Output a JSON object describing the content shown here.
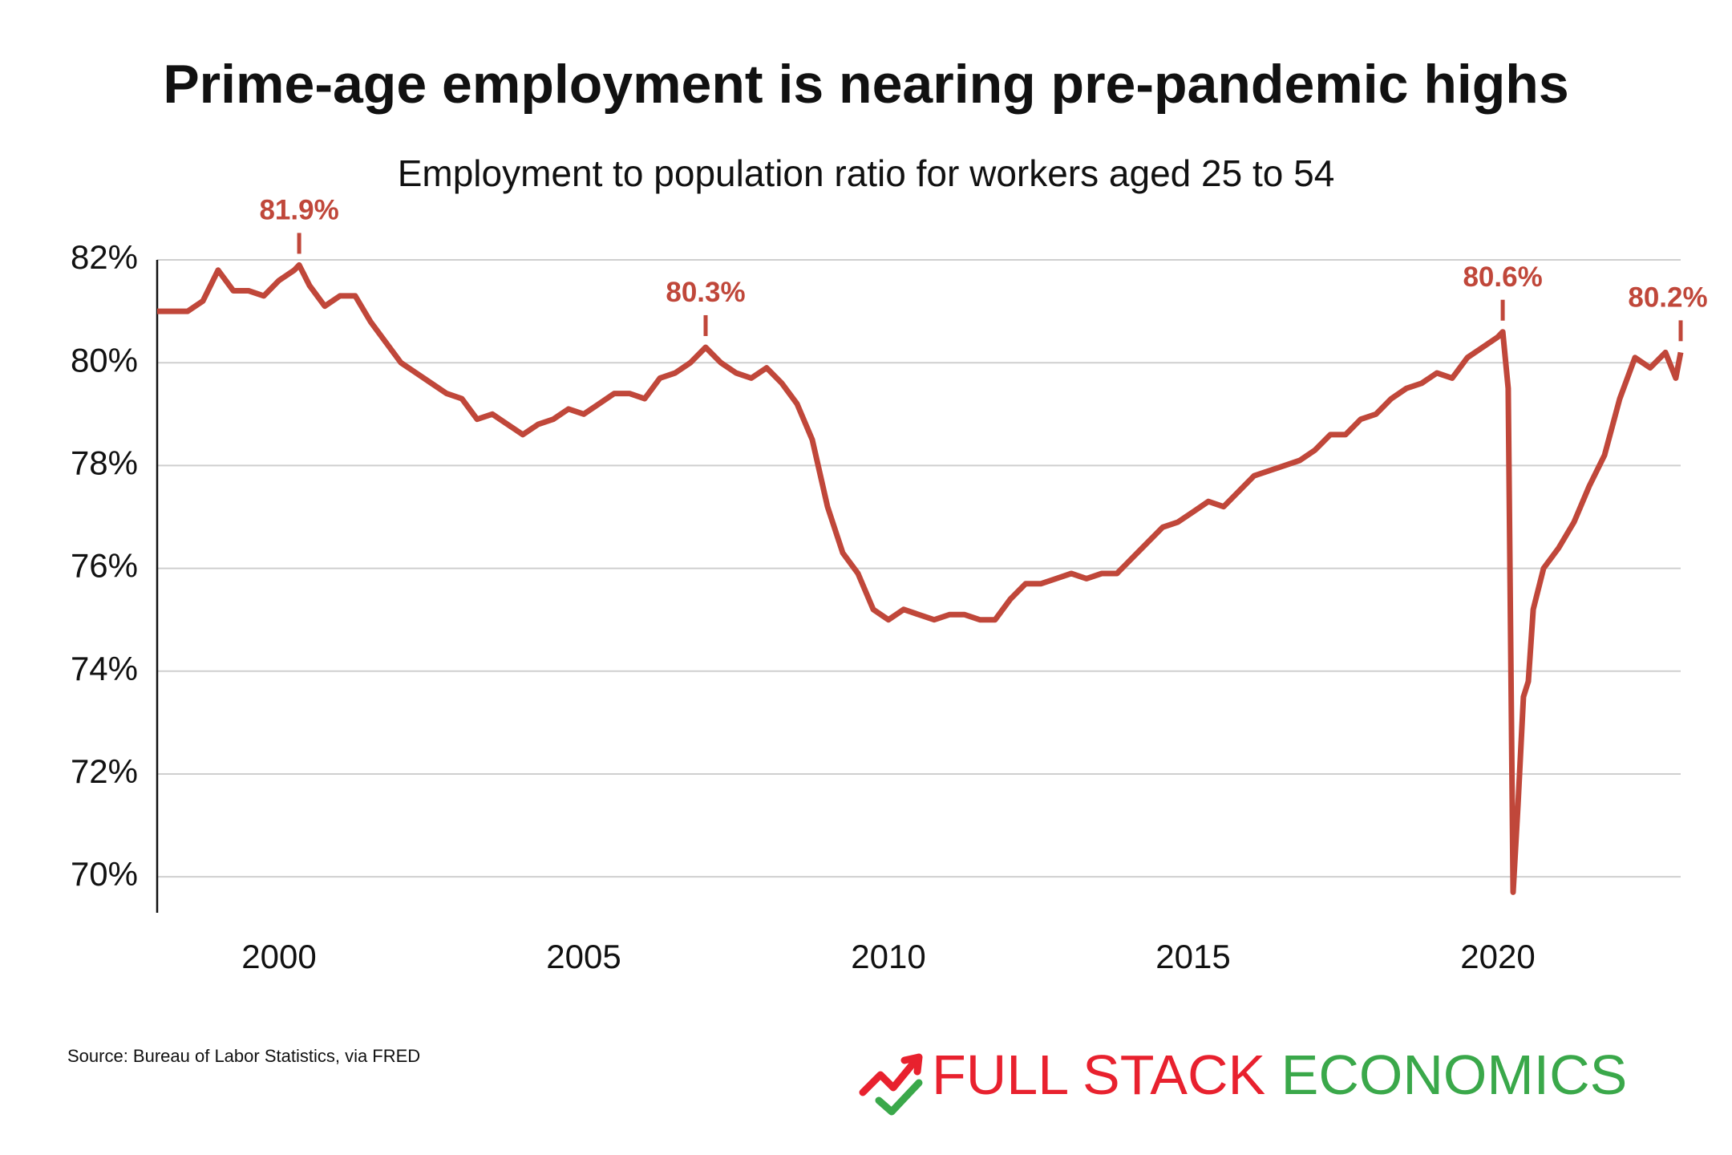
{
  "chart_data": {
    "type": "line",
    "title": "Prime-age employment is nearing pre-pandemic highs",
    "subtitle": "Employment to population ratio for workers aged 25 to 54",
    "source": "Source: Bureau of Labor Statistics, via FRED",
    "brand": [
      "FULL STACK",
      "ECONOMICS"
    ],
    "brand_colors": [
      "#e8212e",
      "#3aa84a"
    ],
    "color": "#c0473a",
    "grid": true,
    "xlim": [
      1998,
      2023
    ],
    "xticks": [
      2000,
      2005,
      2010,
      2015,
      2020
    ],
    "ylim": [
      69.3,
      82
    ],
    "yticks": [
      {
        "value": 70,
        "label": "70%"
      },
      {
        "value": 72,
        "label": "72%"
      },
      {
        "value": 74,
        "label": "74%"
      },
      {
        "value": 76,
        "label": "76%"
      },
      {
        "value": 78,
        "label": "78%"
      },
      {
        "value": 80,
        "label": "80%"
      },
      {
        "value": 82,
        "label": "82%"
      }
    ],
    "annotations": [
      {
        "x": 2000.33,
        "value": 81.9,
        "label": "81.9%"
      },
      {
        "x": 2007.0,
        "value": 80.3,
        "label": "80.3%"
      },
      {
        "x": 2020.08,
        "value": 80.6,
        "label": "80.6%"
      },
      {
        "x": 2023.0,
        "value": 80.2,
        "label": "80.2%"
      }
    ],
    "x": [
      1998.0,
      1998.25,
      1998.5,
      1998.75,
      1999.0,
      1999.25,
      1999.5,
      1999.75,
      2000.0,
      2000.25,
      2000.33,
      2000.5,
      2000.75,
      2001.0,
      2001.25,
      2001.5,
      2001.75,
      2002.0,
      2002.25,
      2002.5,
      2002.75,
      2003.0,
      2003.25,
      2003.5,
      2003.75,
      2004.0,
      2004.25,
      2004.5,
      2004.75,
      2005.0,
      2005.25,
      2005.5,
      2005.75,
      2006.0,
      2006.25,
      2006.5,
      2006.75,
      2007.0,
      2007.25,
      2007.5,
      2007.75,
      2008.0,
      2008.25,
      2008.5,
      2008.75,
      2009.0,
      2009.25,
      2009.5,
      2009.75,
      2010.0,
      2010.25,
      2010.5,
      2010.75,
      2011.0,
      2011.25,
      2011.5,
      2011.75,
      2012.0,
      2012.25,
      2012.5,
      2012.75,
      2013.0,
      2013.25,
      2013.5,
      2013.75,
      2014.0,
      2014.25,
      2014.5,
      2014.75,
      2015.0,
      2015.25,
      2015.5,
      2015.75,
      2016.0,
      2016.25,
      2016.5,
      2016.75,
      2017.0,
      2017.25,
      2017.5,
      2017.75,
      2018.0,
      2018.25,
      2018.5,
      2018.75,
      2019.0,
      2019.25,
      2019.5,
      2019.75,
      2020.0,
      2020.08,
      2020.17,
      2020.25,
      2020.33,
      2020.42,
      2020.5,
      2020.58,
      2020.75,
      2021.0,
      2021.25,
      2021.5,
      2021.75,
      2022.0,
      2022.25,
      2022.5,
      2022.75,
      2022.92,
      2023.0
    ],
    "values": [
      81.0,
      81.0,
      81.0,
      81.2,
      81.8,
      81.4,
      81.4,
      81.3,
      81.6,
      81.8,
      81.9,
      81.5,
      81.1,
      81.3,
      81.3,
      80.8,
      80.4,
      80.0,
      79.8,
      79.6,
      79.4,
      79.3,
      78.9,
      79.0,
      78.8,
      78.6,
      78.8,
      78.9,
      79.1,
      79.0,
      79.2,
      79.4,
      79.4,
      79.3,
      79.7,
      79.8,
      80.0,
      80.3,
      80.0,
      79.8,
      79.7,
      79.9,
      79.6,
      79.2,
      78.5,
      77.2,
      76.3,
      75.9,
      75.2,
      75.0,
      75.2,
      75.1,
      75.0,
      75.1,
      75.1,
      75.0,
      75.0,
      75.4,
      75.7,
      75.7,
      75.8,
      75.9,
      75.8,
      75.9,
      75.9,
      76.2,
      76.5,
      76.8,
      76.9,
      77.1,
      77.3,
      77.2,
      77.5,
      77.8,
      77.9,
      78.0,
      78.1,
      78.3,
      78.6,
      78.6,
      78.9,
      79.0,
      79.3,
      79.5,
      79.6,
      79.8,
      79.7,
      80.1,
      80.3,
      80.5,
      80.6,
      79.5,
      69.7,
      71.4,
      73.5,
      73.8,
      75.2,
      76.0,
      76.4,
      76.9,
      77.6,
      78.2,
      79.3,
      80.1,
      79.9,
      80.2,
      79.7,
      80.2
    ]
  }
}
